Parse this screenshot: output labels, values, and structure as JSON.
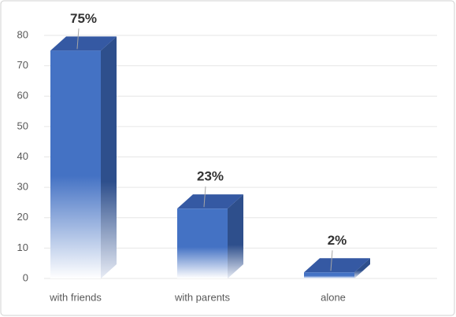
{
  "chart_data": {
    "type": "bar3d",
    "categories": [
      "with friends",
      "with parents",
      "alone"
    ],
    "values": [
      75,
      23,
      2
    ],
    "value_labels": [
      "75%",
      "23%",
      "2%"
    ],
    "color": "#4472c4",
    "ylim": [
      0,
      80
    ],
    "yticks": [
      0,
      10,
      20,
      30,
      40,
      50,
      60,
      70,
      80
    ],
    "grid": true
  }
}
